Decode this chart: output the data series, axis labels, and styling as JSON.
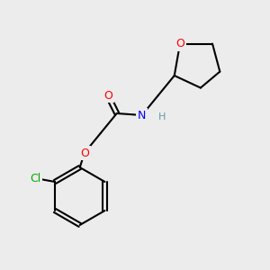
{
  "bg_color": "#ececec",
  "bond_color": "#000000",
  "atom_colors": {
    "O": "#ff0000",
    "N": "#0000ff",
    "Cl": "#00aa00",
    "H": "#6699aa",
    "C": "#000000"
  },
  "font_size_atom": 9,
  "font_size_h": 8,
  "line_width": 1.5,
  "fig_size": [
    3.0,
    3.0
  ],
  "dpi": 100
}
